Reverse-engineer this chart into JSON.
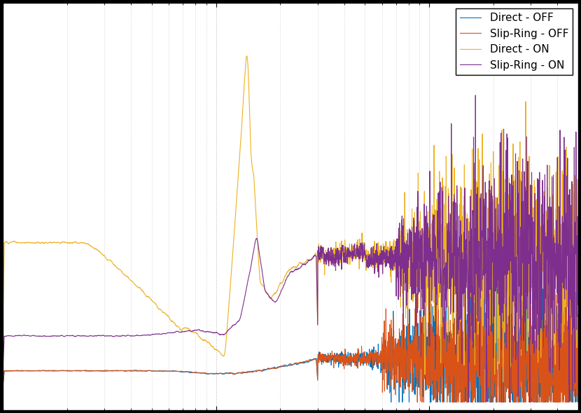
{
  "title": "",
  "xlabel": "",
  "ylabel": "",
  "xlim": [
    1,
    500
  ],
  "legend_entries": [
    "Direct - OFF",
    "Slip-Ring - OFF",
    "Direct - ON",
    "Slip-Ring - ON"
  ],
  "line_colors": [
    "#0072bd",
    "#d95319",
    "#edb120",
    "#7e2f8e"
  ],
  "line_width": 0.8,
  "background_color": "#ffffff",
  "grid_color": "#aaaaaa",
  "figsize": [
    8.3,
    5.9
  ],
  "dpi": 100,
  "ylim": [
    0,
    1.0
  ],
  "yaxis_visible": false
}
